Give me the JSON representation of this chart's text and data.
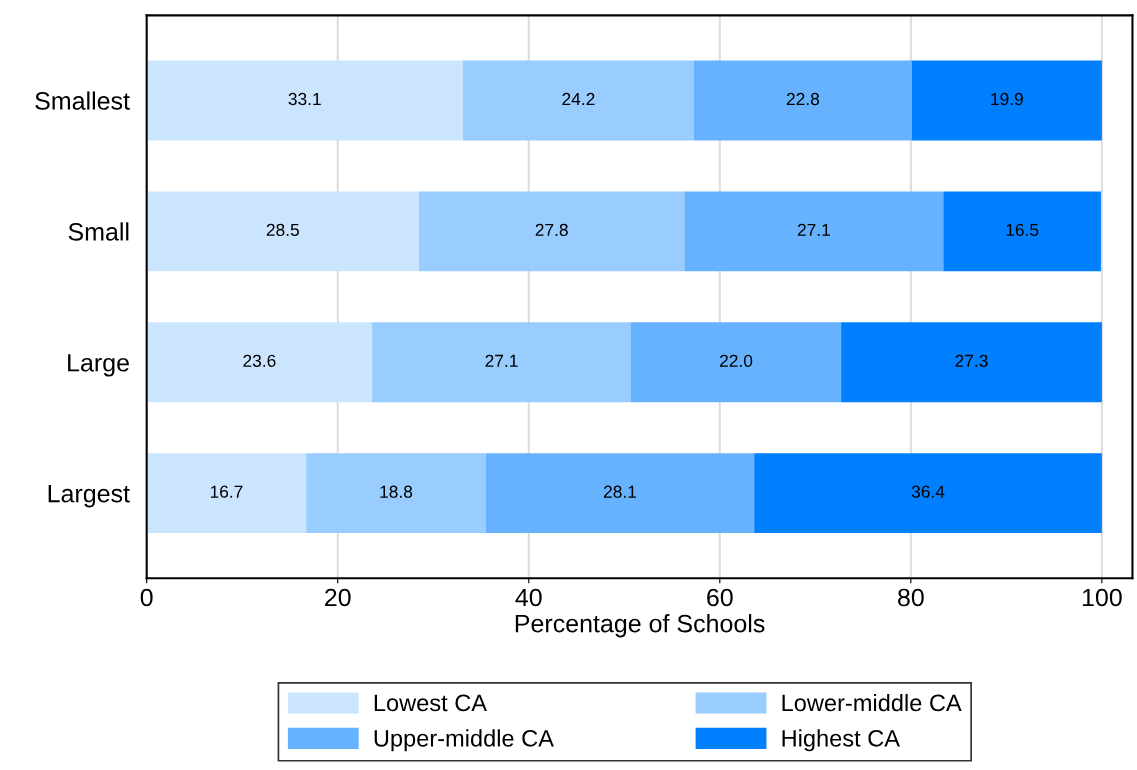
{
  "chart_data": {
    "type": "bar",
    "orientation": "horizontal",
    "stacked": true,
    "categories": [
      "Smallest",
      "Small",
      "Large",
      "Largest"
    ],
    "series": [
      {
        "name": "Lowest CA",
        "color": "#cce5ff",
        "values": [
          33.1,
          28.5,
          23.6,
          16.7
        ],
        "value_labels": [
          "33.1",
          "28.5",
          "23.6",
          "16.7"
        ]
      },
      {
        "name": "Lower-middle CA",
        "color": "#99ccff",
        "values": [
          24.2,
          27.8,
          27.1,
          18.8
        ],
        "value_labels": [
          "24.2",
          "27.8",
          "27.1",
          "18.8"
        ]
      },
      {
        "name": "Upper-middle CA",
        "color": "#66b2ff",
        "values": [
          22.8,
          27.1,
          22.0,
          28.1
        ],
        "value_labels": [
          "22.8",
          "27.1",
          "22.0",
          "28.1"
        ]
      },
      {
        "name": "Highest CA",
        "color": "#0080ff",
        "values": [
          19.9,
          16.5,
          27.3,
          36.4
        ],
        "value_labels": [
          "19.9",
          "16.5",
          "27.3",
          "36.4"
        ]
      }
    ],
    "xlabel": "Percentage of Schools",
    "xlim": [
      0,
      103.2
    ],
    "xticks": [
      0,
      20,
      40,
      60,
      80,
      100
    ],
    "grid": "x",
    "legend": "bottom",
    "data_labels": true
  }
}
